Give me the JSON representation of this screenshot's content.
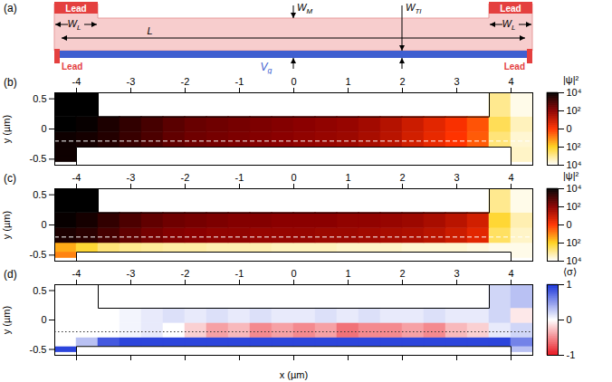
{
  "diagram": {
    "label": "(a)",
    "lead_labels": [
      "Lead",
      "Lead",
      "Lead",
      "Lead"
    ],
    "lead_widths": [
      {
        "text": "W",
        "sub": "L"
      },
      {
        "text": "W",
        "sub": "L"
      }
    ],
    "length": {
      "text": "L"
    },
    "width_markers": [
      {
        "text": "W",
        "sub": "M",
        "x": 0
      },
      {
        "text": "W",
        "sub": "TI",
        "x": 2
      }
    ],
    "gate": {
      "text": "V",
      "sub": "g"
    }
  },
  "chart_data": [
    {
      "type": "heatmap",
      "label": "(b)",
      "xlim": [
        -4.4,
        4.4
      ],
      "xticks": [
        -4,
        -3,
        -2,
        -1,
        0,
        1,
        2,
        3,
        4
      ],
      "ylim": [
        -0.6,
        0.6
      ],
      "yticks": [
        -0.5,
        0,
        0.5
      ],
      "y_label": "y (µm)",
      "x_edges": [
        -4.4,
        -4.0,
        -3.6,
        -3.2,
        -2.8,
        -2.4,
        -2.0,
        -1.6,
        -1.2,
        -0.8,
        -0.4,
        0,
        0.4,
        0.8,
        1.2,
        1.6,
        2.0,
        2.4,
        2.8,
        3.2,
        3.6,
        4.0,
        4.4
      ],
      "y_edges": [
        -0.55,
        -0.45,
        -0.3,
        -0.05,
        0.2,
        0.6
      ],
      "cells": [
        [
          3.8,
          null,
          null,
          null,
          null,
          null,
          null,
          null,
          null,
          null,
          null,
          null,
          null,
          null,
          null,
          null,
          null,
          null,
          null,
          null,
          null,
          -3.5
        ],
        [
          3.8,
          null,
          null,
          null,
          null,
          null,
          null,
          null,
          null,
          null,
          null,
          null,
          null,
          null,
          null,
          null,
          null,
          null,
          null,
          null,
          null,
          -3.5
        ],
        [
          3.8,
          3.7,
          3.5,
          3.2,
          2.9,
          2.6,
          2.4,
          2.3,
          2.2,
          2.1,
          2.0,
          1.9,
          1.8,
          1.7,
          1.5,
          1.2,
          0.8,
          0.4,
          0,
          -0.5,
          -2.8,
          -3.6
        ],
        [
          4.0,
          3.9,
          3.6,
          3.3,
          3.0,
          2.7,
          2.5,
          2.4,
          2.3,
          2.2,
          2.1,
          2.0,
          1.9,
          1.8,
          1.6,
          1.3,
          0.9,
          0.5,
          0.1,
          -0.4,
          -2.5,
          -3.4
        ],
        [
          4.0,
          4.0,
          null,
          null,
          null,
          null,
          null,
          null,
          null,
          null,
          null,
          null,
          null,
          null,
          null,
          null,
          null,
          null,
          null,
          null,
          -3.0,
          -3.8
        ]
      ],
      "outline": [
        [
          [
            -3.6,
            0.6
          ],
          [
            -3.6,
            0.2
          ],
          [
            3.6,
            0.2
          ],
          [
            3.6,
            0.6
          ]
        ],
        [
          [
            -4.0,
            -0.6
          ],
          [
            -4.0,
            -0.3
          ],
          [
            4.0,
            -0.3
          ],
          [
            4.0,
            -0.6
          ]
        ]
      ],
      "reference_line": {
        "y": -0.2,
        "line_style": "dashed",
        "color": "#ffffff"
      },
      "colorbar": {
        "label": "|ψ|²",
        "range": [
          -4,
          4
        ],
        "ticks": [
          {
            "value": -4,
            "label": "10⁴"
          },
          {
            "value": -2,
            "label": "10²"
          },
          0,
          {
            "value": 2,
            "label": "10²"
          },
          {
            "value": 4,
            "label": "10⁴"
          }
        ],
        "colors": [
          "#ffffff",
          "#ffd21f",
          "#ff3300",
          "#8b0000",
          "#000000"
        ]
      }
    },
    {
      "type": "heatmap",
      "label": "(c)",
      "xlim": [
        -4.4,
        4.4
      ],
      "xticks": [
        -4,
        -3,
        -2,
        -1,
        0,
        1,
        2,
        3,
        4
      ],
      "ylim": [
        -0.6,
        0.6
      ],
      "yticks": [
        -0.5,
        0,
        0.5
      ],
      "y_label": "y (µm)",
      "x_edges": [
        -4.4,
        -4.0,
        -3.6,
        -3.2,
        -2.8,
        -2.4,
        -2.0,
        -1.6,
        -1.2,
        -0.8,
        -0.4,
        0,
        0.4,
        0.8,
        1.2,
        1.6,
        2.0,
        2.4,
        2.8,
        3.2,
        3.6,
        4.0,
        4.4
      ],
      "y_edges": [
        -0.55,
        -0.45,
        -0.3,
        -0.05,
        0.2,
        0.6
      ],
      "cells": [
        [
          -1.0,
          null,
          null,
          null,
          null,
          null,
          null,
          null,
          null,
          null,
          null,
          null,
          null,
          null,
          null,
          null,
          null,
          null,
          null,
          null,
          null,
          -3.8
        ],
        [
          -1.5,
          -2.2,
          -2.8,
          -3.0,
          -3.1,
          -3.2,
          -3.2,
          -3.3,
          -3.3,
          -3.3,
          -3.4,
          -3.4,
          -3.4,
          -3.5,
          -3.5,
          -3.5,
          -3.6,
          -3.6,
          -3.6,
          -3.7,
          -3.8,
          -3.8
        ],
        [
          3.6,
          3.4,
          3.0,
          2.6,
          2.3,
          2.1,
          2.0,
          1.9,
          1.9,
          1.8,
          1.8,
          1.8,
          1.7,
          1.7,
          1.6,
          1.5,
          1.4,
          1.2,
          0.9,
          0.5,
          -2.6,
          -3.5
        ],
        [
          3.9,
          3.7,
          3.3,
          2.9,
          2.6,
          2.4,
          2.3,
          2.2,
          2.1,
          2.1,
          2.0,
          2.0,
          2.0,
          1.9,
          1.9,
          1.8,
          1.7,
          1.5,
          1.2,
          0.8,
          -2.2,
          -3.3
        ],
        [
          4.0,
          4.0,
          null,
          null,
          null,
          null,
          null,
          null,
          null,
          null,
          null,
          null,
          null,
          null,
          null,
          null,
          null,
          null,
          null,
          null,
          -3.0,
          -3.8
        ]
      ],
      "outline": [
        [
          [
            -3.6,
            0.6
          ],
          [
            -3.6,
            0.2
          ],
          [
            3.6,
            0.2
          ],
          [
            3.6,
            0.6
          ]
        ],
        [
          [
            -4.0,
            -0.6
          ],
          [
            -4.0,
            -0.45
          ],
          [
            4.0,
            -0.45
          ],
          [
            4.0,
            -0.6
          ]
        ]
      ],
      "reference_line": {
        "y": -0.2,
        "line_style": "dashed",
        "color": "#ffffff"
      },
      "colorbar": {
        "label": "|ψ|²",
        "range": [
          -4,
          4
        ],
        "ticks": [
          {
            "value": -4,
            "label": "10⁴"
          },
          {
            "value": -2,
            "label": "10²"
          },
          0,
          {
            "value": 2,
            "label": "10²"
          },
          {
            "value": 4,
            "label": "10⁴"
          }
        ],
        "colors": [
          "#ffffff",
          "#ffd21f",
          "#ff3300",
          "#8b0000",
          "#000000"
        ]
      }
    },
    {
      "type": "heatmap",
      "label": "(d)",
      "xlim": [
        -4.4,
        4.4
      ],
      "xticks": [
        -4,
        -3,
        -2,
        -1,
        0,
        1,
        2,
        3,
        4
      ],
      "x_label": "x (µm)",
      "ylim": [
        -0.6,
        0.6
      ],
      "yticks": [
        -0.5,
        0,
        0.5
      ],
      "y_label": "y (µm)",
      "x_edges": [
        -4.4,
        -4.0,
        -3.6,
        -3.2,
        -2.8,
        -2.4,
        -2.0,
        -1.6,
        -1.2,
        -0.8,
        -0.4,
        0,
        0.4,
        0.8,
        1.2,
        1.6,
        2.0,
        2.4,
        2.8,
        3.2,
        3.6,
        4.0,
        4.4
      ],
      "y_edges": [
        -0.55,
        -0.45,
        -0.3,
        -0.05,
        0.2,
        0.6
      ],
      "cells": [
        [
          0.9,
          null,
          null,
          null,
          null,
          null,
          null,
          null,
          null,
          null,
          null,
          null,
          null,
          null,
          null,
          null,
          null,
          null,
          null,
          null,
          null,
          0.3
        ],
        [
          0.0,
          0.3,
          0.8,
          0.9,
          0.9,
          0.9,
          0.9,
          0.9,
          0.9,
          0.9,
          0.9,
          0.9,
          0.9,
          0.9,
          0.9,
          0.9,
          0.9,
          0.9,
          0.9,
          0.9,
          0.9,
          0.6
        ],
        [
          0.0,
          0.0,
          0.0,
          0.05,
          0.1,
          0.0,
          -0.2,
          -0.4,
          -0.3,
          -0.5,
          -0.4,
          -0.5,
          -0.4,
          -0.6,
          -0.5,
          -0.5,
          -0.4,
          -0.5,
          -0.3,
          -0.2,
          0.1,
          0.2
        ],
        [
          0.0,
          0.0,
          0.0,
          0.05,
          0.1,
          0.15,
          0.1,
          0.15,
          0.1,
          0.15,
          0.1,
          0.1,
          0.15,
          0.1,
          0.15,
          0.1,
          0.1,
          0.15,
          0.1,
          0.1,
          0.2,
          -0.1
        ],
        [
          0.0,
          0.0,
          null,
          null,
          null,
          null,
          null,
          null,
          null,
          null,
          null,
          null,
          null,
          null,
          null,
          null,
          null,
          null,
          null,
          null,
          0.2,
          0.3
        ]
      ],
      "outline": [
        [
          [
            -3.6,
            0.6
          ],
          [
            -3.6,
            0.2
          ],
          [
            3.6,
            0.2
          ],
          [
            3.6,
            0.6
          ]
        ],
        [
          [
            -4.0,
            -0.6
          ],
          [
            -4.0,
            -0.45
          ],
          [
            4.0,
            -0.45
          ],
          [
            4.0,
            -0.6
          ]
        ]
      ],
      "reference_line": {
        "y": -0.2,
        "line_style": "dotted",
        "color": "#333333"
      },
      "colorbar": {
        "label": "⟨σ⟩",
        "range": [
          -1,
          1
        ],
        "ticks": [
          -1,
          0,
          1
        ],
        "colors": [
          "#e8141e",
          "#ffffff",
          "#1530d8"
        ]
      }
    }
  ]
}
